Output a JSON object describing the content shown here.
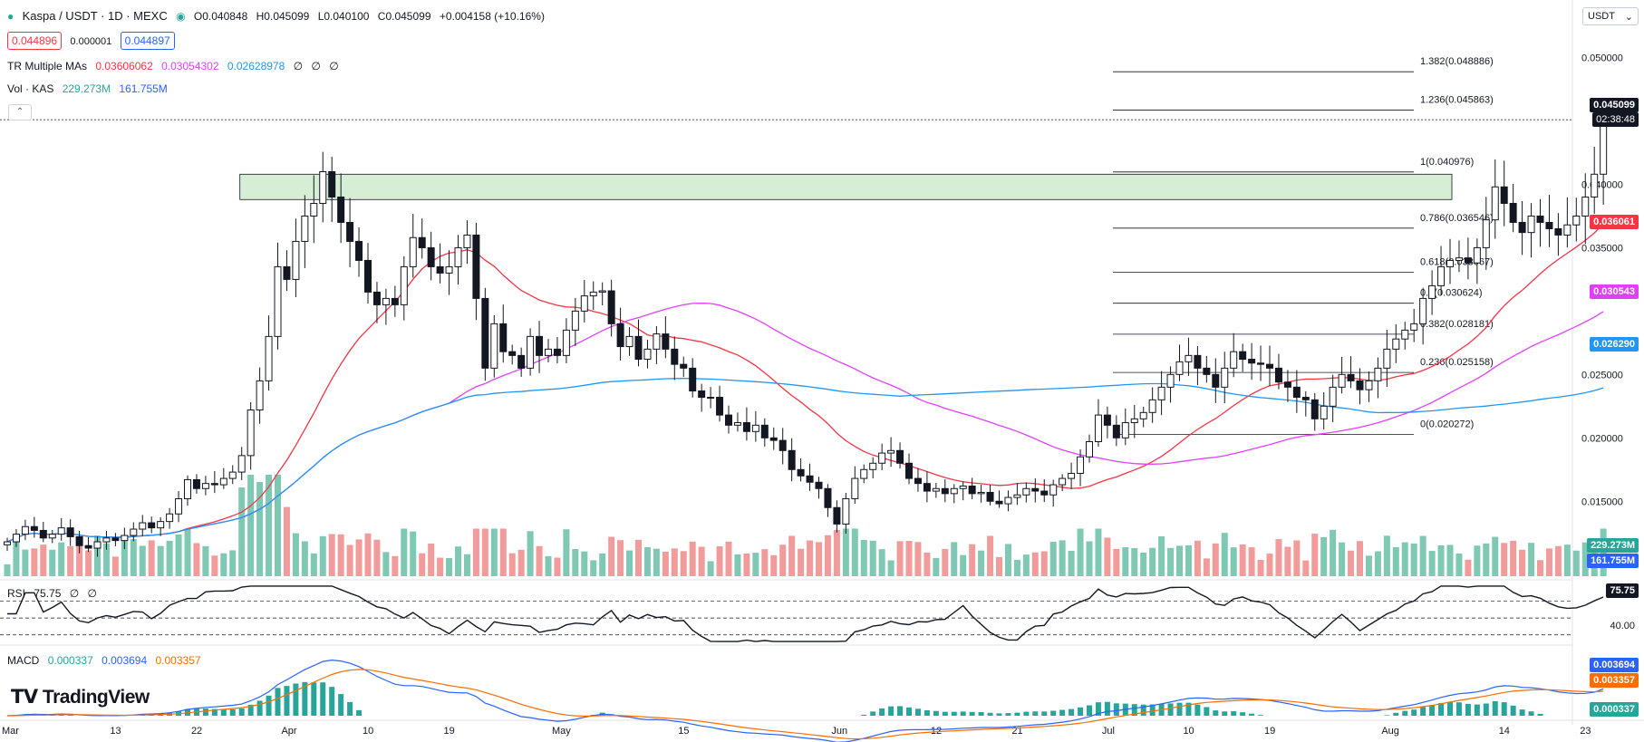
{
  "header": {
    "symbol": "Kaspa / USDT · 1D · MEXC",
    "ohlc": {
      "open": "O0.040848",
      "high": "H0.045099",
      "low": "L0.040100",
      "close": "C0.045099",
      "change": "+0.004158 (+10.16%)"
    },
    "bid": "0.044896",
    "spread": "0.000001",
    "ask": "0.044897",
    "indicator_ma_label": "TR Multiple MAs",
    "ma_values": [
      "0.03606062",
      "0.03054302",
      "0.02628978",
      "∅",
      "∅",
      "∅"
    ],
    "vol_label": "Vol · KAS",
    "vol_values": [
      "229.273M",
      "161.755M"
    ],
    "rsi_label": "RSI",
    "rsi_values": [
      "75.75",
      "∅",
      "∅"
    ],
    "macd_label": "MACD",
    "macd_values": [
      "0.000337",
      "0.003694",
      "0.003357"
    ]
  },
  "currency": "USDT",
  "logo_text": "TradingView",
  "colors": {
    "up": "#131722",
    "down": "#131722",
    "ma_fast": "#f23645",
    "ma_mid": "#e040fb",
    "ma_slow": "#2196f3",
    "vol_up": "#7ec8b4",
    "vol_down": "#f29b9b",
    "zone": "#d6efd4",
    "rsi": "#131722",
    "macd_line": "#2962ff",
    "signal_line": "#ff6d00",
    "hist_pos": "#26a69a",
    "hist_neg": "#f2a2a2"
  },
  "badges": {
    "price": "0.045099",
    "countdown": "02:38:48",
    "ma_fast": "0.036061",
    "ma_mid": "0.030543",
    "ma_slow": "0.026290",
    "vol_a": "229.273M",
    "vol_b": "161.755M",
    "rsi": "75.75",
    "rsi_axis": "40.00",
    "macd_a": "0.003694",
    "macd_b": "0.003357",
    "macd_c": "0.000337"
  },
  "chart_data": {
    "type": "candlestick",
    "y_ticks": [
      0.05,
      0.04,
      0.035,
      0.025,
      0.02,
      0.015
    ],
    "y_tick_labels": [
      "0.050000",
      "0.040000",
      "0.035000",
      "0.025000",
      "0.020000",
      "0.015000"
    ],
    "ylim": [
      0.0088,
      0.0524
    ],
    "x_ticks": [
      {
        "label": "Mar",
        "day": 0
      },
      {
        "label": "13",
        "day": 12
      },
      {
        "label": "22",
        "day": 21
      },
      {
        "label": "Apr",
        "day": 31
      },
      {
        "label": "10",
        "day": 40
      },
      {
        "label": "19",
        "day": 49
      },
      {
        "label": "May",
        "day": 61
      },
      {
        "label": "15",
        "day": 75
      },
      {
        "label": "Jun",
        "day": 92
      },
      {
        "label": "12",
        "day": 103
      },
      {
        "label": "21",
        "day": 112
      },
      {
        "label": "Jul",
        "day": 122
      },
      {
        "label": "10",
        "day": 131
      },
      {
        "label": "19",
        "day": 140
      },
      {
        "label": "Aug",
        "day": 153
      },
      {
        "label": "14",
        "day": 166
      },
      {
        "label": "23",
        "day": 175
      }
    ],
    "closes": [
      0.0118,
      0.0124,
      0.013,
      0.0127,
      0.0121,
      0.0124,
      0.0129,
      0.0122,
      0.0115,
      0.0113,
      0.0118,
      0.0121,
      0.0119,
      0.0123,
      0.0128,
      0.0133,
      0.0129,
      0.0134,
      0.014,
      0.0152,
      0.0167,
      0.016,
      0.0164,
      0.0163,
      0.0168,
      0.0173,
      0.0186,
      0.0222,
      0.0245,
      0.028,
      0.0335,
      0.0325,
      0.0355,
      0.0375,
      0.0385,
      0.041,
      0.039,
      0.037,
      0.0355,
      0.034,
      0.0315,
      0.0305,
      0.031,
      0.0305,
      0.0335,
      0.0358,
      0.035,
      0.0335,
      0.033,
      0.0335,
      0.035,
      0.036,
      0.031,
      0.0255,
      0.029,
      0.0268,
      0.0265,
      0.0255,
      0.028,
      0.0265,
      0.027,
      0.0265,
      0.0285,
      0.03,
      0.0312,
      0.0315,
      0.0316,
      0.029,
      0.0272,
      0.028,
      0.0262,
      0.027,
      0.0282,
      0.027,
      0.0258,
      0.0255,
      0.0237,
      0.0232,
      0.0232,
      0.0218,
      0.021,
      0.0212,
      0.0205,
      0.021,
      0.02,
      0.0198,
      0.019,
      0.0175,
      0.017,
      0.0165,
      0.016,
      0.0145,
      0.0132,
      0.0152,
      0.0168,
      0.0175,
      0.018,
      0.0188,
      0.019,
      0.018,
      0.0168,
      0.0164,
      0.0158,
      0.016,
      0.0156,
      0.016,
      0.0162,
      0.0156,
      0.0157,
      0.015,
      0.0148,
      0.0153,
      0.0155,
      0.016,
      0.0158,
      0.0155,
      0.0163,
      0.0168,
      0.0172,
      0.0185,
      0.0197,
      0.0218,
      0.021,
      0.02,
      0.0212,
      0.0215,
      0.022,
      0.023,
      0.024,
      0.025,
      0.026,
      0.0265,
      0.0255,
      0.025,
      0.024,
      0.0255,
      0.0268,
      0.0262,
      0.0259,
      0.0258,
      0.0255,
      0.0244,
      0.024,
      0.0232,
      0.023,
      0.0215,
      0.0225,
      0.024,
      0.025,
      0.0245,
      0.0238,
      0.0245,
      0.0255,
      0.027,
      0.0278,
      0.0285,
      0.029,
      0.031,
      0.032,
      0.0335,
      0.034,
      0.0342,
      0.0338,
      0.035,
      0.0372,
      0.0398,
      0.0385,
      0.037,
      0.0362,
      0.0375,
      0.037,
      0.0365,
      0.036,
      0.0368,
      0.0375,
      0.039,
      0.0408,
      0.0451
    ],
    "highs_note": "Candle wicks derived from closes",
    "fib_levels": [
      {
        "label": "1.382(0.048886)",
        "value": 0.048886
      },
      {
        "label": "1.236(0.045863)",
        "value": 0.045863
      },
      {
        "label": "1(0.040976)",
        "value": 0.040976
      },
      {
        "label": "0.786(0.036546)",
        "value": 0.036546
      },
      {
        "label": "0.618(0.033067)",
        "value": 0.033067
      },
      {
        "label": "0.5(0.030624)",
        "value": 0.030624
      },
      {
        "label": "0.382(0.028181)",
        "value": 0.028181
      },
      {
        "label": "0.236(0.025158)",
        "value": 0.025158
      },
      {
        "label": "0(0.020272)",
        "value": 0.020272
      }
    ],
    "zone": {
      "low": 0.0388,
      "high": 0.0408,
      "start_day": 26,
      "end_day": 160
    }
  }
}
